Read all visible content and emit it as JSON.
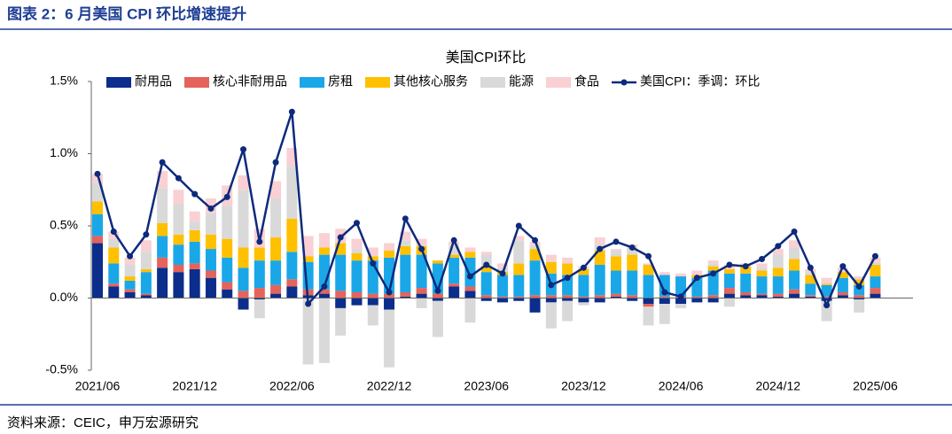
{
  "header": {
    "title": "图表 2：6 月美国 CPI 环比增速提升"
  },
  "source": "资料来源：CEIC，申万宏源研究",
  "chart_data": {
    "type": "stacked_bar_line",
    "title": "美国CPI环比",
    "categories": [
      "2021/06",
      null,
      null,
      null,
      null,
      null,
      "2021/12",
      null,
      null,
      null,
      null,
      null,
      "2022/06",
      null,
      null,
      null,
      null,
      null,
      "2022/12",
      null,
      null,
      null,
      null,
      null,
      "2023/06",
      null,
      null,
      null,
      null,
      null,
      "2023/12",
      null,
      null,
      null,
      null,
      null,
      "2024/06",
      null,
      null,
      null,
      null,
      null,
      "2024/12",
      null,
      null,
      null,
      null,
      null,
      "2025/06"
    ],
    "ylim": [
      -0.5,
      1.5
    ],
    "yticks": [
      {
        "value": -0.5,
        "label": "-0.5%"
      },
      {
        "value": 0,
        "label": "0.0%"
      },
      {
        "value": 0.5,
        "label": "0.5%"
      },
      {
        "value": 1,
        "label": "1.0%"
      },
      {
        "value": 1.5,
        "label": "1.5%"
      }
    ],
    "series": [
      {
        "name": "耐用品",
        "color": "#0b2d8c",
        "values": [
          0.38,
          0.08,
          0.04,
          0.02,
          0.21,
          0.18,
          0.2,
          0.14,
          0.06,
          -0.08,
          -0.01,
          0.03,
          0.08,
          0.02,
          0.03,
          -0.07,
          -0.05,
          -0.05,
          -0.08,
          0.01,
          0.03,
          -0.02,
          0.08,
          0.05,
          -0.02,
          -0.03,
          -0.02,
          -0.1,
          -0.03,
          -0.02,
          -0.03,
          -0.03,
          0.01,
          -0.02,
          -0.04,
          -0.04,
          -0.04,
          -0.03,
          -0.03,
          0.03,
          0.02,
          0.02,
          0.01,
          0.03,
          0.01,
          -0.02,
          0.02,
          -0.01,
          0.03
        ]
      },
      {
        "name": "核心非耐用品",
        "color": "#e5635a",
        "values": [
          0.05,
          0.02,
          0.02,
          0.01,
          0.07,
          0.05,
          0.04,
          0.05,
          0.05,
          0.05,
          0.07,
          0.06,
          0.05,
          0.04,
          0.03,
          0.05,
          0.04,
          0.03,
          0.03,
          0.03,
          0.04,
          0.03,
          0.02,
          0.03,
          0.02,
          0.01,
          0.01,
          0.02,
          0.02,
          0.02,
          0.01,
          0.02,
          0.02,
          0.02,
          -0.02,
          0.01,
          0.01,
          0.01,
          0.02,
          0.04,
          0.02,
          0.01,
          0.02,
          0.03,
          0.01,
          0.01,
          0.02,
          0.02,
          0.04
        ]
      },
      {
        "name": "房租",
        "color": "#1aa7e8",
        "values": [
          0.15,
          0.14,
          0.06,
          0.15,
          0.15,
          0.14,
          0.15,
          0.15,
          0.17,
          0.16,
          0.19,
          0.17,
          0.19,
          0.19,
          0.24,
          0.25,
          0.22,
          0.23,
          0.25,
          0.26,
          0.23,
          0.21,
          0.18,
          0.2,
          0.16,
          0.15,
          0.15,
          0.24,
          0.15,
          0.14,
          0.15,
          0.21,
          0.16,
          0.17,
          0.16,
          0.15,
          0.14,
          0.13,
          0.17,
          0.1,
          0.13,
          0.12,
          0.12,
          0.13,
          0.08,
          0.08,
          0.1,
          0.07,
          0.08
        ]
      },
      {
        "name": "其他核心服务",
        "color": "#ffc000",
        "values": [
          0.09,
          0.11,
          0.03,
          0.02,
          0.09,
          0.07,
          0.08,
          0.1,
          0.13,
          0.14,
          0.09,
          0.16,
          0.23,
          0.04,
          0.05,
          0.08,
          0.05,
          0.03,
          0.05,
          0.06,
          0.06,
          0.02,
          0.02,
          0.04,
          0.04,
          0.02,
          0.08,
          0.08,
          0.08,
          0.08,
          0.04,
          0.1,
          0.1,
          0.11,
          0.07,
          0,
          0,
          0.02,
          0.03,
          0.03,
          0.05,
          0.04,
          0.06,
          0.08,
          0.06,
          0.01,
          0.04,
          0.04,
          0.08
        ]
      },
      {
        "name": "能源",
        "color": "#d9d9d9",
        "values": [
          0.13,
          0.06,
          0.08,
          0.12,
          0.24,
          0.21,
          0.06,
          0.15,
          0.23,
          0.4,
          -0.13,
          0.27,
          0.36,
          -0.46,
          -0.45,
          -0.19,
          0.03,
          -0.14,
          -0.4,
          0.04,
          -0.07,
          -0.25,
          0.06,
          -0.17,
          0.08,
          0.03,
          0.16,
          0.03,
          -0.18,
          -0.14,
          -0.02,
          0.04,
          0.04,
          0.05,
          -0.13,
          -0.14,
          -0.03,
          0,
          0.02,
          -0.06,
          0,
          0.02,
          0.09,
          0.08,
          0.02,
          -0.14,
          0,
          -0.09,
          0.02
        ]
      },
      {
        "name": "食品",
        "color": "#f9d0d4",
        "values": [
          0.06,
          0.05,
          0.05,
          0.08,
          0.12,
          0.1,
          0.07,
          0.1,
          0.14,
          0.1,
          0.13,
          0.12,
          0.13,
          0.14,
          0.1,
          0.1,
          0.07,
          0.06,
          0.05,
          0.06,
          0.05,
          0,
          0.03,
          0.03,
          0.02,
          0.03,
          0.03,
          0.02,
          0.05,
          0.04,
          0.02,
          0.05,
          0.01,
          0.02,
          0.01,
          0.02,
          0.02,
          0.03,
          0.02,
          0.03,
          0.02,
          0.03,
          0.04,
          0.05,
          0.02,
          0.04,
          0.03,
          0.02,
          0.03
        ]
      }
    ],
    "line_series": {
      "name": "美国CPI：季调：环比",
      "color": "#0d2a7c",
      "values": [
        0.86,
        0.46,
        0.29,
        0.44,
        0.94,
        0.83,
        0.72,
        0.62,
        0.7,
        1.03,
        0.39,
        0.94,
        1.29,
        -0.04,
        0.08,
        0.42,
        0.52,
        0.24,
        0.04,
        0.55,
        0.34,
        0.05,
        0.4,
        0.15,
        0.23,
        0.17,
        0.5,
        0.4,
        0.09,
        0.14,
        0.21,
        0.34,
        0.39,
        0.35,
        0.29,
        0.04,
        0.01,
        0.14,
        0.17,
        0.23,
        0.22,
        0.27,
        0.36,
        0.46,
        0.21,
        -0.05,
        0.22,
        0.08,
        0.29
      ]
    }
  }
}
